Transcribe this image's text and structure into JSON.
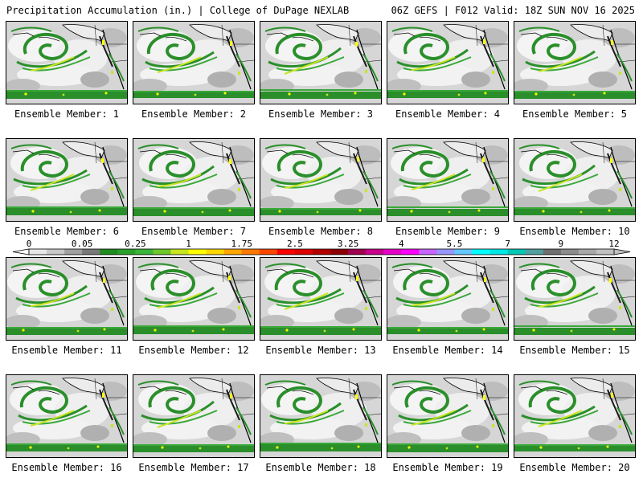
{
  "header": {
    "left": "Precipitation Accumulation (in.) | College of DuPage NEXLAB",
    "right": "06Z GEFS | F012 Valid: 18Z SUN NOV 16 2025"
  },
  "colorbar": {
    "tick_labels": [
      "0",
      "0.05",
      "0.25",
      "1",
      "1.75",
      "2.5",
      "3.25",
      "4",
      "5.5",
      "7",
      "9",
      "12"
    ],
    "colors": [
      "#e6e6e6",
      "#c8c8c8",
      "#a0a0a0",
      "#787878",
      "#1e8c1e",
      "#2aa02a",
      "#39b539",
      "#6ec82a",
      "#c8e61e",
      "#ffff00",
      "#ffd700",
      "#ffa500",
      "#ff7800",
      "#ff4500",
      "#ff0000",
      "#dc0000",
      "#b40000",
      "#8c0000",
      "#a00050",
      "#c8008c",
      "#e600c8",
      "#ff00ff",
      "#c864ff",
      "#9696ff",
      "#64c8ff",
      "#00ffff",
      "#00e6e6",
      "#00c8b4",
      "#50a0a0",
      "#6e6e6e",
      "#8c8c8c",
      "#a8a8a8",
      "#c0c0c0"
    ]
  },
  "panels": [
    {
      "label": "Ensemble Member: 1"
    },
    {
      "label": "Ensemble Member: 2"
    },
    {
      "label": "Ensemble Member: 3"
    },
    {
      "label": "Ensemble Member: 4"
    },
    {
      "label": "Ensemble Member: 5"
    },
    {
      "label": "Ensemble Member: 6"
    },
    {
      "label": "Ensemble Member: 7"
    },
    {
      "label": "Ensemble Member: 8"
    },
    {
      "label": "Ensemble Member: 9"
    },
    {
      "label": "Ensemble Member: 10"
    },
    {
      "label": "Ensemble Member: 11"
    },
    {
      "label": "Ensemble Member: 12"
    },
    {
      "label": "Ensemble Member: 13"
    },
    {
      "label": "Ensemble Member: 14"
    },
    {
      "label": "Ensemble Member: 15"
    },
    {
      "label": "Ensemble Member: 16"
    },
    {
      "label": "Ensemble Member: 17"
    },
    {
      "label": "Ensemble Member: 18"
    },
    {
      "label": "Ensemble Member: 19"
    },
    {
      "label": "Ensemble Member: 20"
    }
  ]
}
